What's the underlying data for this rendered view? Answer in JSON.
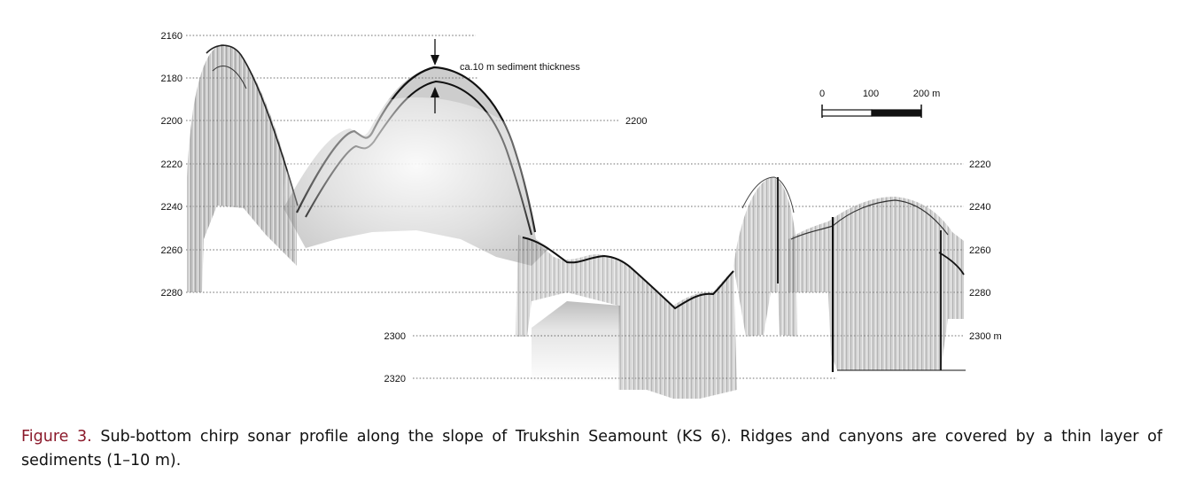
{
  "figure": {
    "depth_labels": {
      "left": [
        "2160",
        "2180",
        "2200",
        "2220",
        "2240",
        "2260",
        "2280"
      ],
      "middle_2200": "2200",
      "lower": [
        "2300",
        "2320"
      ],
      "right": [
        "2220",
        "2240",
        "2260",
        "2280",
        "2300 m"
      ]
    },
    "annotation": "ca.10 m sediment thickness",
    "scale_bar": {
      "labels": [
        "0",
        "100",
        "200 m"
      ]
    }
  },
  "caption": {
    "label": "Figure 3.",
    "text": " Sub-bottom chirp sonar profile along the slope of Trukshin Seamount (KS 6). Ridges and canyons are covered by a thin layer of sediments (1–10 m)."
  },
  "colors": {
    "caption_label": "#8b1a2b",
    "profile": "#111111"
  }
}
